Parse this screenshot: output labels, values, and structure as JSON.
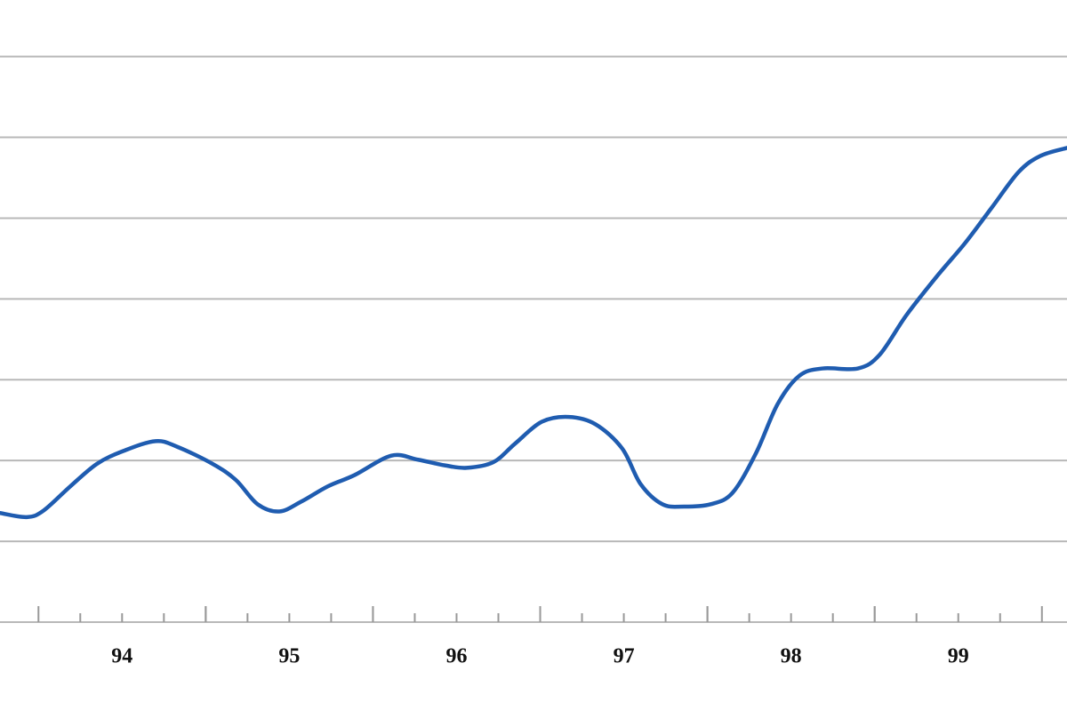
{
  "chart_data": {
    "type": "line",
    "x": [
      93.77,
      93.93,
      94.03,
      94.19,
      94.35,
      94.51,
      94.7,
      94.83,
      95.04,
      95.18,
      95.31,
      95.44,
      95.57,
      95.73,
      95.89,
      96.11,
      96.27,
      96.43,
      96.56,
      96.72,
      96.85,
      97.01,
      97.17,
      97.33,
      97.49,
      97.6,
      97.73,
      97.86,
      98.02,
      98.15,
      98.29,
      98.42,
      98.55,
      98.69,
      98.9,
      99.03,
      99.19,
      99.38,
      99.54,
      99.7,
      99.86,
      99.99,
      100.15
    ],
    "series": [
      {
        "color": "#1f5cb0",
        "values": [
          1.35,
          1.3,
          1.38,
          1.68,
          1.96,
          2.12,
          2.24,
          2.17,
          1.96,
          1.76,
          1.46,
          1.37,
          1.49,
          1.68,
          1.82,
          2.06,
          2.01,
          1.94,
          1.91,
          1.98,
          2.21,
          2.48,
          2.54,
          2.45,
          2.15,
          1.71,
          1.46,
          1.43,
          1.46,
          1.6,
          2.09,
          2.7,
          3.05,
          3.14,
          3.14,
          3.31,
          3.8,
          4.3,
          4.69,
          5.13,
          5.57,
          5.77,
          5.87
        ]
      }
    ],
    "xlim": [
      93.77,
      100.15
    ],
    "xticks": [
      {
        "value": 94.5,
        "label": "94"
      },
      {
        "value": 95.5,
        "label": "95"
      },
      {
        "value": 96.5,
        "label": "96"
      },
      {
        "value": 97.5,
        "label": "97"
      },
      {
        "value": 98.5,
        "label": "98"
      },
      {
        "value": 99.5,
        "label": "99"
      }
    ],
    "ylim": [
      0,
      7.7
    ],
    "yticks": [
      1,
      2,
      3,
      4,
      5,
      6,
      7
    ],
    "ytick_labels": false,
    "grid": true
  }
}
